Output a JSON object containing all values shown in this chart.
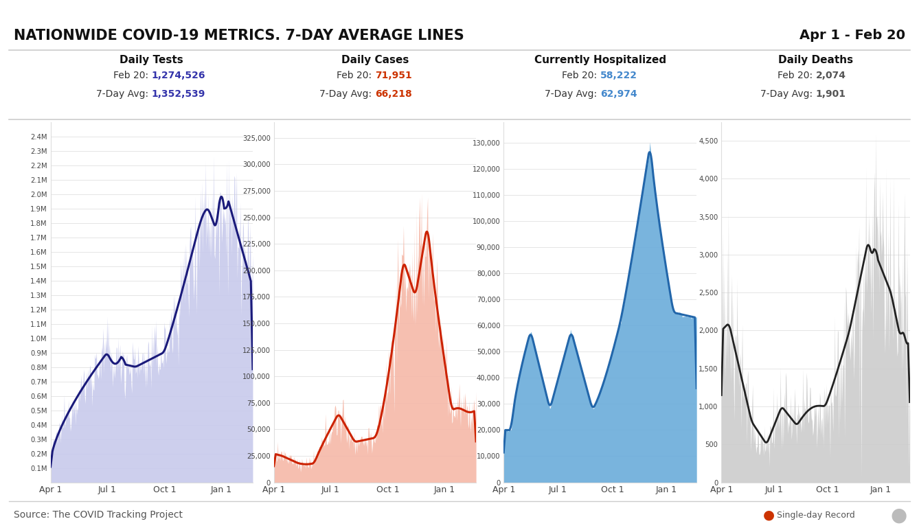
{
  "title": "NATIONWIDE COVID-19 METRICS. 7-DAY AVERAGE LINES",
  "date_range": "Apr 1 - Feb 20",
  "source": "Source: The COVID Tracking Project",
  "panels": [
    {
      "label": "Daily Tests",
      "today_label": "Feb 20:",
      "today_value": "1,274,526",
      "avg_value": "1,352,539",
      "today_color": "#3333aa",
      "avg_color": "#3333aa",
      "line_color": "#1a1a7a",
      "fill_color": "#c8caec",
      "spike_color": "#b0b4e0",
      "yticks": [
        "0.1M",
        "0.2M",
        "0.3M",
        "0.4M",
        "0.5M",
        "0.6M",
        "0.7M",
        "0.8M",
        "0.9M",
        "1.0M",
        "1.1M",
        "1.2M",
        "1.3M",
        "1.4M",
        "1.5M",
        "1.6M",
        "1.7M",
        "1.8M",
        "1.9M",
        "2.0M",
        "2.1M",
        "2.2M",
        "2.3M",
        "2.4M"
      ],
      "ytick_vals": [
        100000,
        200000,
        300000,
        400000,
        500000,
        600000,
        700000,
        800000,
        900000,
        1000000,
        1100000,
        1200000,
        1300000,
        1400000,
        1500000,
        1600000,
        1700000,
        1800000,
        1900000,
        2000000,
        2100000,
        2200000,
        2300000,
        2400000
      ],
      "ylim": [
        0,
        2500000
      ]
    },
    {
      "label": "Daily Cases",
      "today_label": "Feb 20:",
      "today_value": "71,951",
      "avg_value": "66,218",
      "today_color": "#cc3300",
      "avg_color": "#cc3300",
      "line_color": "#cc2200",
      "fill_color": "#f5b8a8",
      "spike_color": "#f0a090",
      "yticks": [
        "0",
        "25,000",
        "50,000",
        "75,000",
        "100,000",
        "125,000",
        "150,000",
        "175,000",
        "200,000",
        "225,000",
        "250,000",
        "275,000",
        "300,000",
        "325,000"
      ],
      "ytick_vals": [
        0,
        25000,
        50000,
        75000,
        100000,
        125000,
        150000,
        175000,
        200000,
        225000,
        250000,
        275000,
        300000,
        325000
      ],
      "ylim": [
        0,
        340000
      ]
    },
    {
      "label": "Currently Hospitalized",
      "today_label": "Feb 20:",
      "today_value": "58,222",
      "avg_value": "62,974",
      "today_color": "#4488cc",
      "avg_color": "#4488cc",
      "line_color": "#2266aa",
      "fill_color": "#6aacda",
      "spike_color": "#6aacda",
      "yticks": [
        "0",
        "10,000",
        "20,000",
        "30,000",
        "40,000",
        "50,000",
        "60,000",
        "70,000",
        "80,000",
        "90,000",
        "100,000",
        "110,000",
        "120,000",
        "130,000"
      ],
      "ytick_vals": [
        0,
        10000,
        20000,
        30000,
        40000,
        50000,
        60000,
        70000,
        80000,
        90000,
        100000,
        110000,
        120000,
        130000
      ],
      "ylim": [
        0,
        138000
      ]
    },
    {
      "label": "Daily Deaths",
      "today_label": "Feb 20:",
      "today_value": "2,074",
      "avg_value": "1,901",
      "today_color": "#555555",
      "avg_color": "#555555",
      "line_color": "#222222",
      "fill_color": "#cccccc",
      "spike_color": "#cccccc",
      "yticks": [
        "0",
        "500",
        "1,000",
        "1,500",
        "2,000",
        "2,500",
        "3,000",
        "3,500",
        "4,000",
        "4,500"
      ],
      "ytick_vals": [
        0,
        500,
        1000,
        1500,
        2000,
        2500,
        3000,
        3500,
        4000,
        4500
      ],
      "ylim": [
        0,
        4750
      ]
    }
  ],
  "x_ticks": [
    "Apr 1",
    "Jul 1",
    "Oct 1",
    "Jan 1"
  ],
  "x_tick_days": [
    0,
    91,
    184,
    275
  ],
  "n_days": 327
}
